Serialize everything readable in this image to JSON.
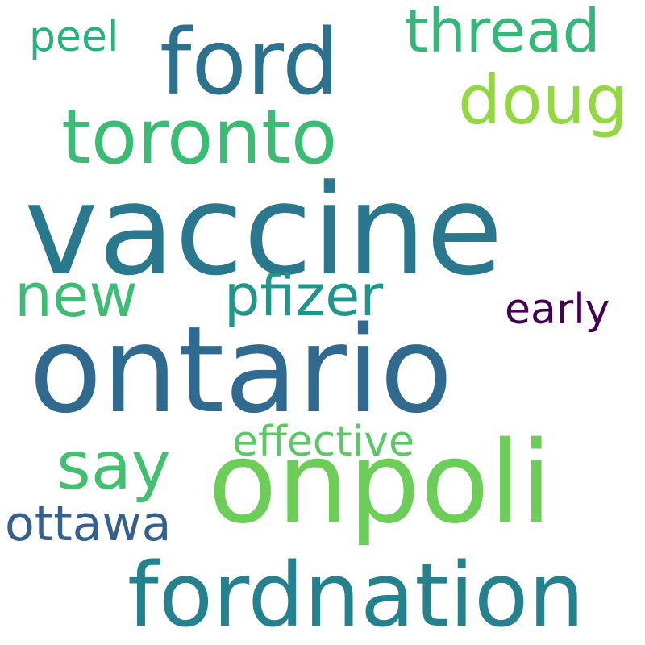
{
  "words": [
    {
      "text": "vaccine",
      "color": "#2a788e"
    },
    {
      "text": "ontario",
      "color": "#306a8e"
    },
    {
      "text": "onpoli",
      "color": "#6ccd59"
    },
    {
      "text": "fordnation",
      "color": "#26818e"
    },
    {
      "text": "ford",
      "color": "#2c728e"
    },
    {
      "text": "toronto",
      "color": "#3cbb75"
    },
    {
      "text": "thread",
      "color": "#35b779"
    },
    {
      "text": "doug",
      "color": "#93d741"
    },
    {
      "text": "new",
      "color": "#3fbc73"
    },
    {
      "text": "pfizer",
      "color": "#1f958b"
    },
    {
      "text": "say",
      "color": "#44bf70"
    },
    {
      "text": "effective",
      "color": "#5ac864"
    },
    {
      "text": "ottawa",
      "color": "#355f8d"
    },
    {
      "text": "peel",
      "color": "#2ab07f"
    },
    {
      "text": "early",
      "color": "#440154"
    }
  ]
}
